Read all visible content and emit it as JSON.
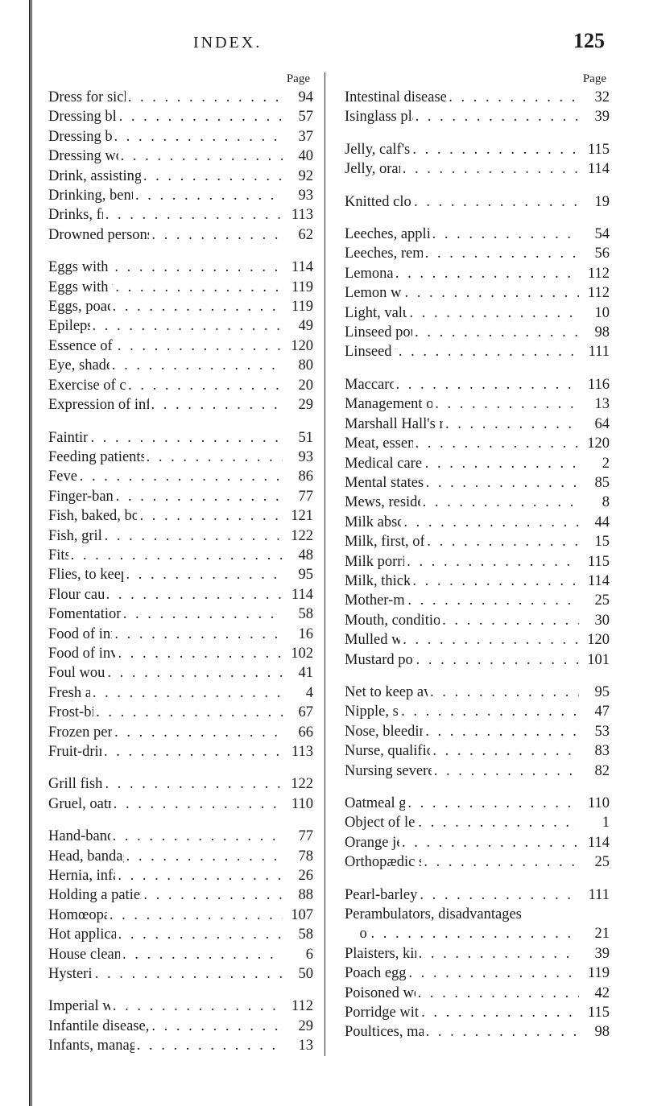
{
  "header": {
    "running_head": "INDEX.",
    "page_number": "125"
  },
  "column_heading": "Page",
  "dot_fill": ". . . . . . . . . . . . . . . . . . . .",
  "left_groups": [
    [
      {
        "label": "Dress for sick-room",
        "page": "94"
      },
      {
        "label": "Dressing blisters",
        "page": "57"
      },
      {
        "label": "Dressing burns",
        "page": "37"
      },
      {
        "label": "Dressing wounds",
        "page": "40"
      },
      {
        "label": "Drink, assisting patients to",
        "page": "92"
      },
      {
        "label": "Drinking, bent tube for",
        "page": "93"
      },
      {
        "label": "Drinks, fruit",
        "page": "113"
      },
      {
        "label": "Drowned persons, treatment of",
        "page": "62"
      }
    ],
    [
      {
        "label": "Eggs with milk",
        "page": "114"
      },
      {
        "label": "Eggs with wine",
        "page": "119"
      },
      {
        "label": "Eggs, poached",
        "page": "119"
      },
      {
        "label": "Epilepsy",
        "page": "49"
      },
      {
        "label": "Essence of meat",
        "page": "120"
      },
      {
        "label": "Eye, shade for",
        "page": "80"
      },
      {
        "label": "Exercise of children",
        "page": "20"
      },
      {
        "label": "Expression of infantile disease",
        "page": "29"
      }
    ],
    [
      {
        "label": "Fainting",
        "page": "51"
      },
      {
        "label": "Feeding patients with spoon",
        "page": "93"
      },
      {
        "label": "Fever",
        "page": "86"
      },
      {
        "label": "Finger-bandage",
        "page": "77"
      },
      {
        "label": "Fish, baked, boiled, fried",
        "page": "121"
      },
      {
        "label": "Fish, grilled",
        "page": "122"
      },
      {
        "label": "Fits",
        "page": "48"
      },
      {
        "label": "Flies, to keep away",
        "page": "95"
      },
      {
        "label": "Flour caudle",
        "page": "114"
      },
      {
        "label": "Fomentations, dry",
        "page": "58"
      },
      {
        "label": "Food of infants",
        "page": "16"
      },
      {
        "label": "Food of invalids",
        "page": "102"
      },
      {
        "label": "Foul wounds",
        "page": "41"
      },
      {
        "label": "Fresh air",
        "page": "4"
      },
      {
        "label": "Frost-bite",
        "page": "67"
      },
      {
        "label": "Frozen persons",
        "page": "66"
      },
      {
        "label": "Fruit-drinks",
        "page": "113"
      }
    ],
    [
      {
        "label": "Grill fish, to",
        "page": "122"
      },
      {
        "label": "Gruel, oatmeal",
        "page": "110"
      }
    ],
    [
      {
        "label": "Hand-bandage",
        "page": "77"
      },
      {
        "label": "Head, bandages for",
        "page": "78"
      },
      {
        "label": "Hernia, infantile",
        "page": "26"
      },
      {
        "label": "Holding a patient, mode of",
        "page": "88"
      },
      {
        "label": "Homœopathy",
        "page": "107"
      },
      {
        "label": "Hot applications",
        "page": "58"
      },
      {
        "label": "House cleanliness",
        "page": "6"
      },
      {
        "label": "Hysterics",
        "page": "50"
      }
    ],
    [
      {
        "label": "Imperial water",
        "page": "112"
      },
      {
        "label": "Infantile disease, expression of",
        "page": "29"
      },
      {
        "label": "Infants, management of",
        "page": "13"
      }
    ]
  ],
  "right_groups": [
    [
      {
        "label": "Intestinal disease, symptoms of",
        "page": "32"
      },
      {
        "label": "Isinglass plaister",
        "page": "39"
      }
    ],
    [
      {
        "label": "Jelly, calf's-foot",
        "page": "115"
      },
      {
        "label": "Jelly, orange",
        "page": "114"
      }
    ],
    [
      {
        "label": "Knitted clothing",
        "page": "19"
      }
    ],
    [
      {
        "label": "Leeches, application of",
        "page": "54"
      },
      {
        "label": "Leeches, removal of",
        "page": "56"
      },
      {
        "label": "Lemonade",
        "page": "112"
      },
      {
        "label": "Lemon water",
        "page": "112"
      },
      {
        "label": "Light, value of",
        "page": "10"
      },
      {
        "label": "Linseed poultice",
        "page": "98"
      },
      {
        "label": "Linseed tea",
        "page": "111"
      }
    ],
    [
      {
        "label": "Maccaroni",
        "page": "116"
      },
      {
        "label": "Management of children",
        "page": "13"
      },
      {
        "label": "Marshall Hall's ready method",
        "page": "64"
      },
      {
        "label": "Meat, essence of",
        "page": "120"
      },
      {
        "label": "Medical care of sick",
        "page": "2"
      },
      {
        "label": "Mental states of sick",
        "page": "85"
      },
      {
        "label": "Mews, residence in",
        "page": "8"
      },
      {
        "label": "Milk abscess",
        "page": "44"
      },
      {
        "label": "Milk, first, of mother",
        "page": "15"
      },
      {
        "label": "Milk porridge",
        "page": "115"
      },
      {
        "label": "Milk, thickened",
        "page": "114"
      },
      {
        "label": "Mother-marks",
        "page": "25"
      },
      {
        "label": "Mouth, condition of infant's",
        "page": "30"
      },
      {
        "label": "Mulled wine",
        "page": "120"
      },
      {
        "label": "Mustard poultice",
        "page": "101"
      }
    ],
    [
      {
        "label": "Net to keep away flies",
        "page": "95"
      },
      {
        "label": "Nipple, sore",
        "page": "47"
      },
      {
        "label": "Nose, bleeding from",
        "page": "53"
      },
      {
        "label": "Nurse, qualifications of",
        "page": "83"
      },
      {
        "label": "Nursing severe sickness",
        "page": "82"
      }
    ],
    [
      {
        "label": "Oatmeal gruel",
        "page": "110"
      },
      {
        "label": "Object of lectures",
        "page": "1"
      },
      {
        "label": "Orange jelly",
        "page": "114"
      },
      {
        "label": "Orthopædic surgery",
        "page": "25"
      }
    ],
    [
      {
        "label": "Pearl-barley water",
        "page": "111"
      },
      {
        "label": "Perambulators, disadvantages",
        "page": ""
      },
      {
        "label": " of",
        "page": "21"
      },
      {
        "label": "Plaisters, kinds of",
        "page": "39"
      },
      {
        "label": "Poach eggs, to",
        "page": "119"
      },
      {
        "label": "Poisoned wounds",
        "page": "42"
      },
      {
        "label": "Porridge with milk",
        "page": "115"
      },
      {
        "label": "Poultices, making of",
        "page": "98"
      }
    ]
  ]
}
